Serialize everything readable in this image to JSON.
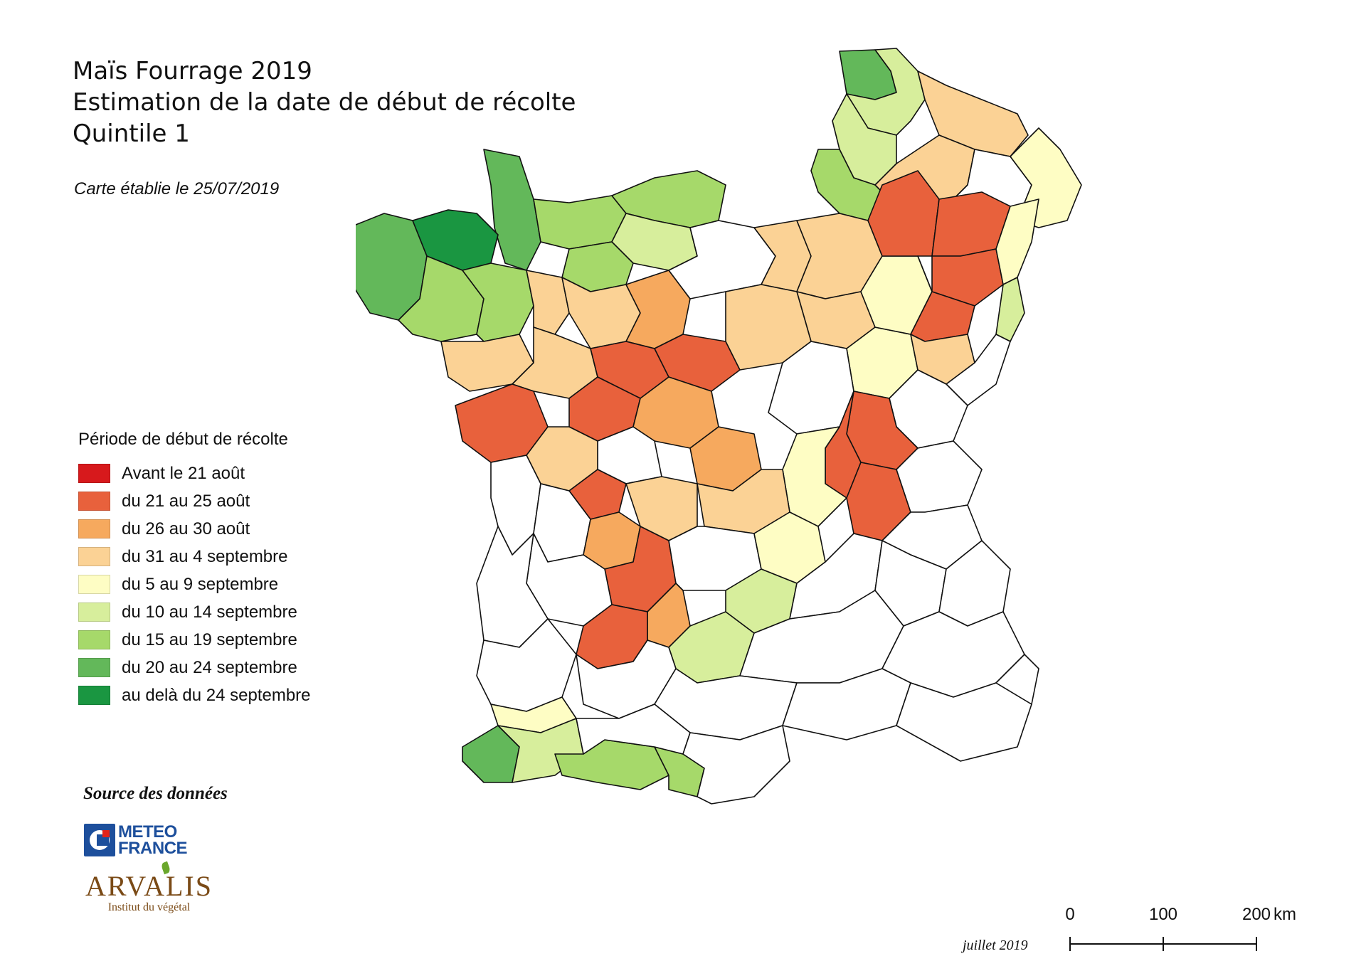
{
  "map": {
    "title_lines": [
      "Maïs Fourrage 2019",
      "Estimation de la date de début de récolte",
      "Quintile 1"
    ],
    "subtitle": "Carte établie le 25/07/2019",
    "legend": {
      "title": "Période de début de récolte",
      "items": [
        {
          "label": "Avant le 21 août",
          "color": "#d7191c"
        },
        {
          "label": "du 21 au 25 août",
          "color": "#e8613c"
        },
        {
          "label": "du 26 au 30 août",
          "color": "#f6a95e"
        },
        {
          "label": "du 31 au 4 septembre",
          "color": "#fbd295"
        },
        {
          "label": "du 5 au 9 septembre",
          "color": "#fefdc4"
        },
        {
          "label": "du 10 au 14 septembre",
          "color": "#d7ee9c"
        },
        {
          "label": "du 15 au 19 septembre",
          "color": "#a6d96a"
        },
        {
          "label": "du 20 au 24 septembre",
          "color": "#63b85a"
        },
        {
          "label": "au delà du 24 septembre",
          "color": "#1a9641"
        }
      ]
    },
    "source": {
      "title": "Source des données",
      "meteo_logo": [
        "METEO",
        "FRANCE"
      ],
      "arvalis_name": "ARVALIS",
      "arvalis_tagline": "Institut du végétal"
    },
    "footer_date": "juillet 2019",
    "scale": {
      "labels": [
        "0",
        "100",
        "200"
      ],
      "unit": "km"
    },
    "region_colors": {
      "none": "#ffffff",
      "c1": "#e8613c",
      "c2": "#f6a95e",
      "c3": "#fbd295",
      "c4": "#fefdc4",
      "c5": "#d7ee9c",
      "c6": "#a6d96a",
      "c7": "#63b85a",
      "c8": "#1a9641"
    }
  }
}
